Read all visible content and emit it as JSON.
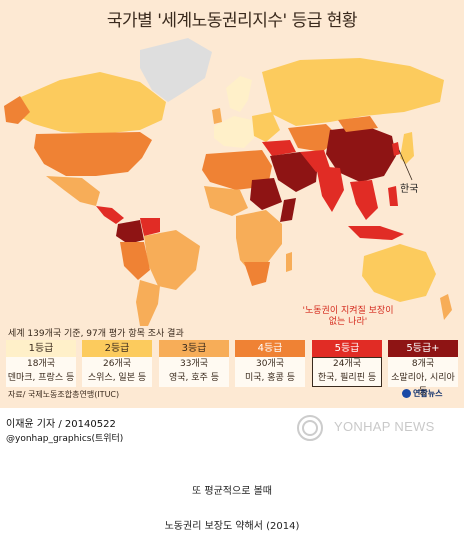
{
  "title": "국가별 '세계노동권리지수' 등급 현황",
  "map": {
    "highlight_label": "한국",
    "colors": {
      "ocean": "#fde9d3",
      "no_data": "#dedede",
      "grade1": "#fff0c9",
      "grade2": "#fccb5d",
      "grade3": "#f7ad58",
      "grade4": "#ef8234",
      "grade5": "#e12c25",
      "grade5plus": "#8e1414"
    }
  },
  "note": "'노동권이 지켜질 보장이 없는 나라'",
  "subtitle": "세계 139개국 기준, 97개 평가 항목 조사 결과",
  "legend": [
    {
      "grade": "1등급",
      "count": "18개국",
      "examples": "덴마크, 프랑스 등",
      "color": "#fff0c9",
      "text_color": "#3a2a1d"
    },
    {
      "grade": "2등급",
      "count": "26개국",
      "examples": "스위스, 일본 등",
      "color": "#fccb5d",
      "text_color": "#3a2a1d"
    },
    {
      "grade": "3등급",
      "count": "33개국",
      "examples": "영국, 호주 등",
      "color": "#f7ad58",
      "text_color": "#3a2a1d"
    },
    {
      "grade": "4등급",
      "count": "30개국",
      "examples": "미국, 홍콩 등",
      "color": "#ef8234",
      "text_color": "#ffffff"
    },
    {
      "grade": "5등급",
      "count": "24개국",
      "examples": "한국, 필리핀 등",
      "color": "#e12c25",
      "text_color": "#ffffff"
    },
    {
      "grade": "5등급+",
      "count": "8개국",
      "examples": "소말리아, 시리아 등",
      "color": "#8e1414",
      "text_color": "#ffffff"
    }
  ],
  "source": "자료/ 국제노동조합총연맹(ITUC)",
  "brand": "연합뉴스",
  "credit": {
    "reporter": "이재윤 기자 / 20140522",
    "twitter": "@yonhap_graphics(트위터)"
  },
  "watermark": "YONHAP NEWS",
  "captions": {
    "line1": "또 평균적으로 볼때",
    "line2": "노동권리 보장도 약해서 (2014)"
  }
}
